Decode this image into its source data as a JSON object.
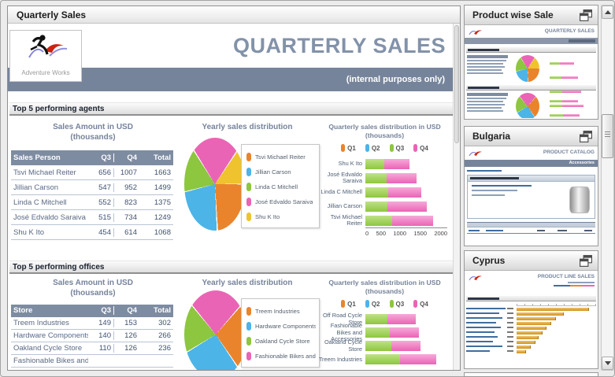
{
  "main_panel": {
    "title": "Quarterly Sales",
    "report": {
      "logo_caption": "Adventure Works",
      "title": "QUARTERLY SALES",
      "watermark": "(internal purposes only)"
    }
  },
  "quarters_legend": [
    {
      "label": "Q1",
      "color": "#e9842c"
    },
    {
      "label": "Q2",
      "color": "#4cb4e7"
    },
    {
      "label": "Q3",
      "color": "#8dc63f"
    },
    {
      "label": "Q4",
      "color": "#ea64b5"
    }
  ],
  "sections": [
    {
      "heading": "Top 5 performing agents",
      "table_title_line1": "Sales Amount in  USD",
      "table_title_line2": "(thousands)",
      "pie_title": "Yearly sales distribution",
      "bar_title": "Quarterly sales distribution in USD (thousands)",
      "table": {
        "columns": [
          "Sales Person",
          "Q3",
          "Q4",
          "Total"
        ],
        "rows": [
          [
            "Tsvi Michael Reiter",
            656,
            1007,
            1663
          ],
          [
            "Jillian Carson",
            547,
            952,
            1499
          ],
          [
            "Linda C Mitchell",
            552,
            823,
            1375
          ],
          [
            "José Edvaldo Saraiva",
            515,
            734,
            1249
          ],
          [
            "Shu K Ito",
            454,
            614,
            1068
          ]
        ]
      }
    },
    {
      "heading": "Top 5 performing offices",
      "table_title_line1": "Sales Amount in  USD",
      "table_title_line2": "(thousands)",
      "pie_title": "Yearly sales distribution",
      "bar_title": "Quarterly sales distribution in USD (thousands)",
      "table": {
        "columns": [
          "Store",
          "Q3",
          "Q4",
          "Total"
        ],
        "rows": [
          [
            "Treem Industries",
            149,
            153,
            302
          ],
          [
            "Hardware Components",
            140,
            126,
            266
          ],
          [
            "Oakland Cycle Store",
            110,
            126,
            236
          ],
          [
            "Fashionable Bikes and Accessories",
            "",
            "",
            ""
          ]
        ]
      }
    }
  ],
  "chart_data": [
    {
      "type": "pie",
      "title": "Yearly sales distribution",
      "labels": [
        "Tsvi Michael Reiter",
        "Jillian Carson",
        "Linda C Mitchell",
        "José Edvaldo Saraiva",
        "Shu K Ito"
      ],
      "values": [
        1663,
        1499,
        1375,
        1249,
        1068
      ],
      "colors": [
        "#e9842c",
        "#4cb4e7",
        "#8dc63f",
        "#ea64b5",
        "#efc32e"
      ],
      "legend_position": "right"
    },
    {
      "type": "bar",
      "orientation": "horizontal",
      "stacked": true,
      "title": "Quarterly sales distribution in USD (thousands)",
      "categories": [
        "Shu K Ito",
        "José Edvaldo Saraiva",
        "Linda C Mitchell",
        "Jillian Carson",
        "Tsvi Michael Reiter"
      ],
      "series": [
        {
          "name": "Q3",
          "color": "#8dc63f",
          "light": "#c0e287",
          "values": [
            454,
            515,
            552,
            547,
            656
          ]
        },
        {
          "name": "Q4",
          "color": "#ea64b5",
          "light": "#f6a9d9",
          "values": [
            614,
            734,
            823,
            952,
            1007
          ]
        }
      ],
      "legend": [
        "Q1",
        "Q2",
        "Q3",
        "Q4"
      ],
      "xlim": [
        0,
        2000
      ],
      "xticks": [
        "0",
        "500",
        "1000",
        "1500",
        "2000"
      ]
    },
    {
      "type": "pie",
      "title": "Yearly sales distribution",
      "labels": [
        "Treem Industries",
        "Hardware Components",
        "Oakland Cycle Store",
        "Fashionable Bikes and Accessories"
      ],
      "values": [
        302,
        266,
        236,
        230
      ],
      "colors": [
        "#e9842c",
        "#4cb4e7",
        "#8dc63f",
        "#ea64b5"
      ],
      "legend_position": "right"
    },
    {
      "type": "bar",
      "orientation": "horizontal",
      "stacked": true,
      "title": "Quarterly sales distribution in USD (thousands)",
      "categories": [
        "Off Road Cycle Store",
        "Fashionable Bikes and Accessories",
        "Oakland Cycle Store",
        "Treem Industries"
      ],
      "series": [
        {
          "name": "Q3",
          "color": "#8dc63f",
          "light": "#c0e287",
          "values": [
            95,
            104,
            110,
            149
          ]
        },
        {
          "name": "Q4",
          "color": "#ea64b5",
          "light": "#f6a9d9",
          "values": [
            120,
            126,
            126,
            153
          ]
        }
      ],
      "legend": [
        "Q1",
        "Q2",
        "Q3",
        "Q4"
      ],
      "xlim": [
        0,
        350
      ],
      "xticks": []
    }
  ],
  "sidebar": {
    "cards": [
      {
        "title": "Product wise Sale",
        "preview_heading": "QUARTERLY SALES"
      },
      {
        "title": "Bulgaria",
        "preview_heading": "PRODUCT CATALOG",
        "preview_band": "Accessories"
      },
      {
        "title": "Cyprus",
        "preview_heading": "PRODUCT LINE SALES"
      }
    ]
  }
}
